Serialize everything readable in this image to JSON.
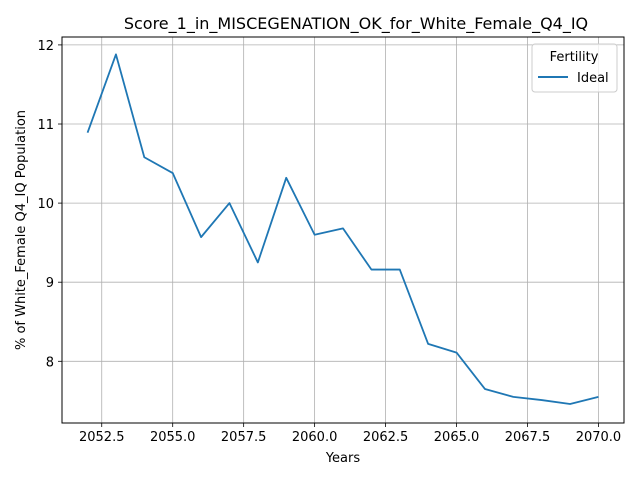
{
  "chart_data": {
    "type": "line",
    "title": "Score_1_in_MISCEGENATION_OK_for_White_Female_Q4_IQ",
    "xlabel": "Years",
    "ylabel": "% of White_Female Q4_IQ Population",
    "xlim": [
      2051.1,
      2070.9
    ],
    "ylim": [
      7.22,
      12.1
    ],
    "xticks": [
      2052.5,
      2055.0,
      2057.5,
      2060.0,
      2062.5,
      2065.0,
      2067.5,
      2070.0
    ],
    "xtick_labels": [
      "2052.5",
      "2055.0",
      "2057.5",
      "2060.0",
      "2062.5",
      "2065.0",
      "2067.5",
      "2070.0"
    ],
    "yticks": [
      8,
      9,
      10,
      11,
      12
    ],
    "ytick_labels": [
      "8",
      "9",
      "10",
      "11",
      "12"
    ],
    "grid": true,
    "legend": {
      "title": "Fertility",
      "placement": "top-right"
    },
    "series": [
      {
        "name": "Ideal",
        "color": "#1f77b4",
        "x": [
          2052,
          2053,
          2054,
          2055,
          2056,
          2057,
          2058,
          2059,
          2060,
          2061,
          2062,
          2063,
          2064,
          2065,
          2066,
          2067,
          2068,
          2069,
          2070
        ],
        "y": [
          10.89,
          11.88,
          10.58,
          10.38,
          9.57,
          10.0,
          9.25,
          10.32,
          9.6,
          9.68,
          9.16,
          9.16,
          8.22,
          8.11,
          7.65,
          7.55,
          7.51,
          7.46,
          7.55
        ]
      }
    ]
  }
}
